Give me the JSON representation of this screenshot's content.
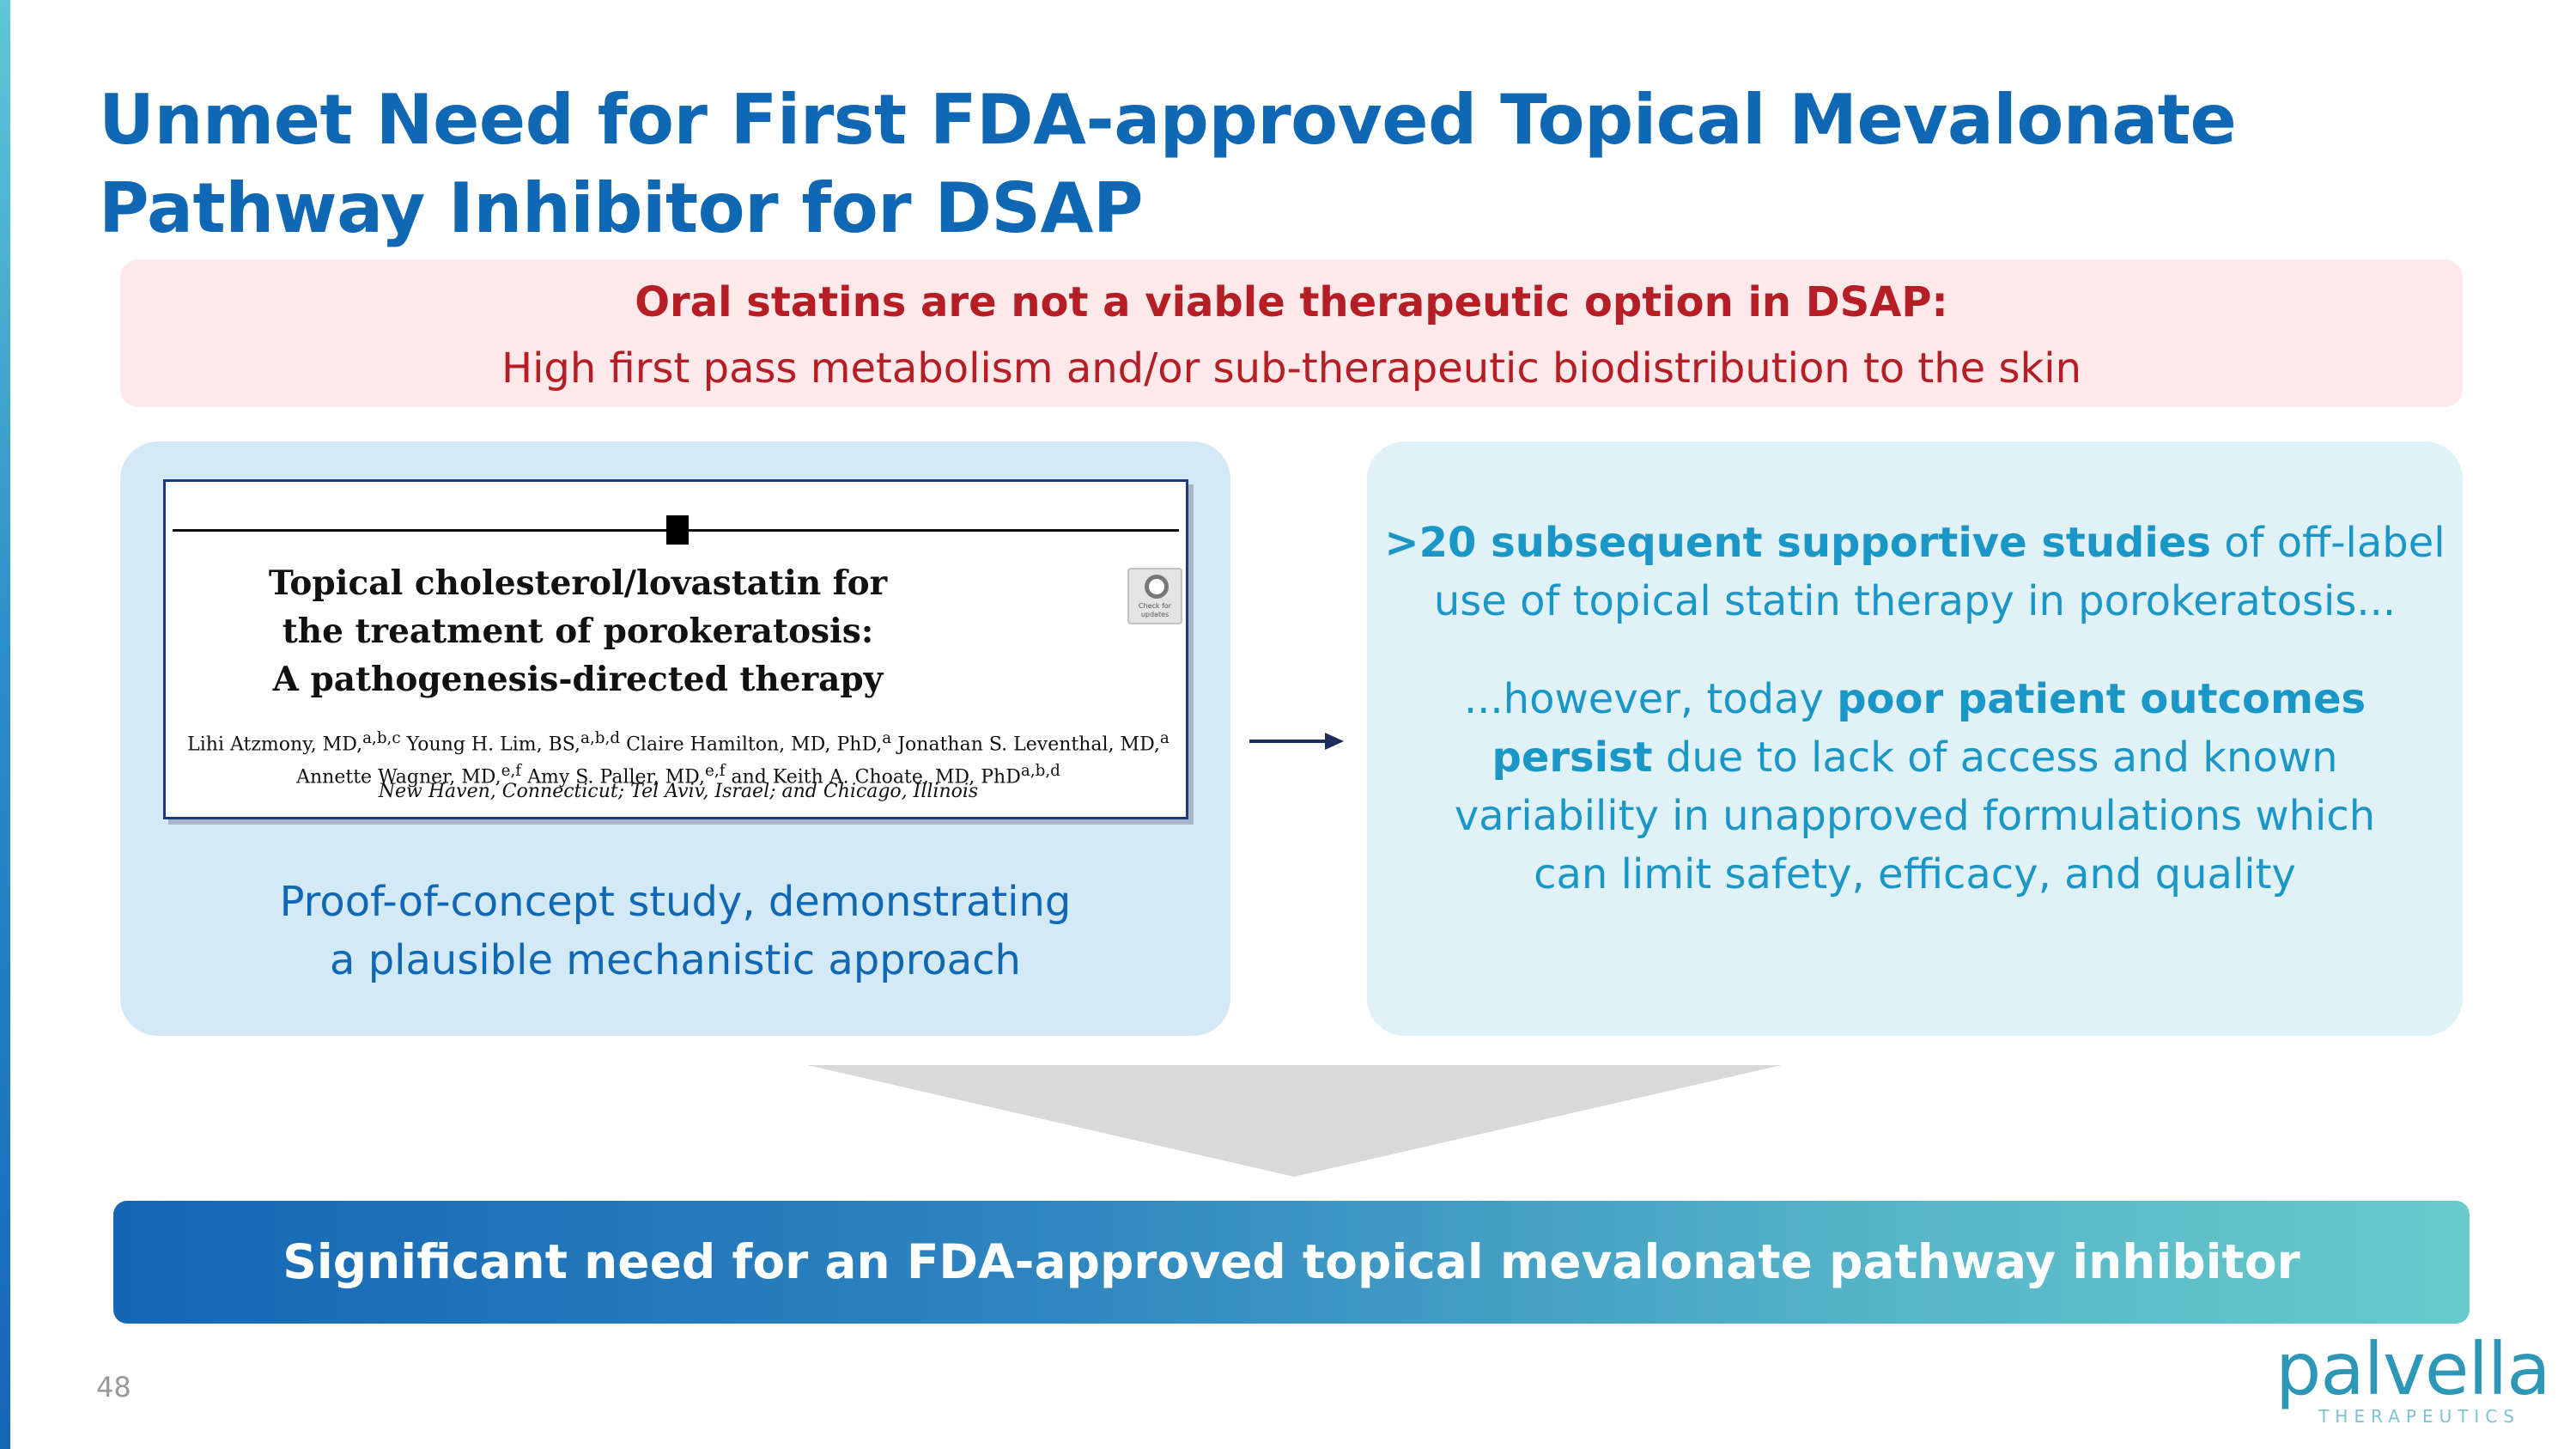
{
  "title": "Unmet Need for First FDA-approved Topical Mevalonate Pathway Inhibitor for DSAP",
  "callout": {
    "heading": "Oral statins are not a viable therapeutic option in DSAP:",
    "subtext": "High first pass metabolism and/or sub-therapeutic biodistribution to the skin"
  },
  "left_card": {
    "paper": {
      "title_lines": [
        "Topical cholesterol/lovastatin for",
        "the treatment of porokeratosis:",
        "A pathogenesis-directed therapy"
      ],
      "badge_text": "Check for updates",
      "authors": [
        {
          "name": "Lihi Atzmony, MD,",
          "sup": "a,b,c"
        },
        {
          "name": "Young H. Lim, BS,",
          "sup": "a,b,d"
        },
        {
          "name": "Claire Hamilton, MD, PhD,",
          "sup": "a"
        },
        {
          "name": "Jonathan S. Leventhal, MD,",
          "sup": "a"
        },
        {
          "name": "Annette Wagner, MD,",
          "sup": "e,f"
        },
        {
          "name": "Amy S. Paller, MD,",
          "sup": "e,f"
        },
        {
          "name": "and Keith A. Choate, MD, PhD",
          "sup": "a,b,d"
        }
      ],
      "affiliation": "New Haven, Connecticut; Tel Aviv, Israel; and Chicago, Illinois"
    },
    "caption_line1": "Proof-of-concept study, demonstrating",
    "caption_line2": "a plausible mechanistic approach"
  },
  "right_card": {
    "p1_bold": ">20 subsequent supportive studies",
    "p1_rest": " of off-label use of topical statin therapy in porokeratosis...",
    "p2_start": "...however, today ",
    "p2_bold": "poor patient outcomes persist",
    "p2_rest": " due to lack of access and known variability in unapproved formulations which can limit safety, efficacy, and quality"
  },
  "banner": "Significant need for an FDA-approved topical mevalonate pathway inhibitor",
  "page_number": "48",
  "logo": {
    "wordmark": "palvella",
    "tagline": "THERAPEUTICS"
  },
  "colors": {
    "title_blue": "#1068b4",
    "callout_red": "#b41e24",
    "callout_bg": "#fde8ea",
    "right_text": "#1b97c7"
  }
}
